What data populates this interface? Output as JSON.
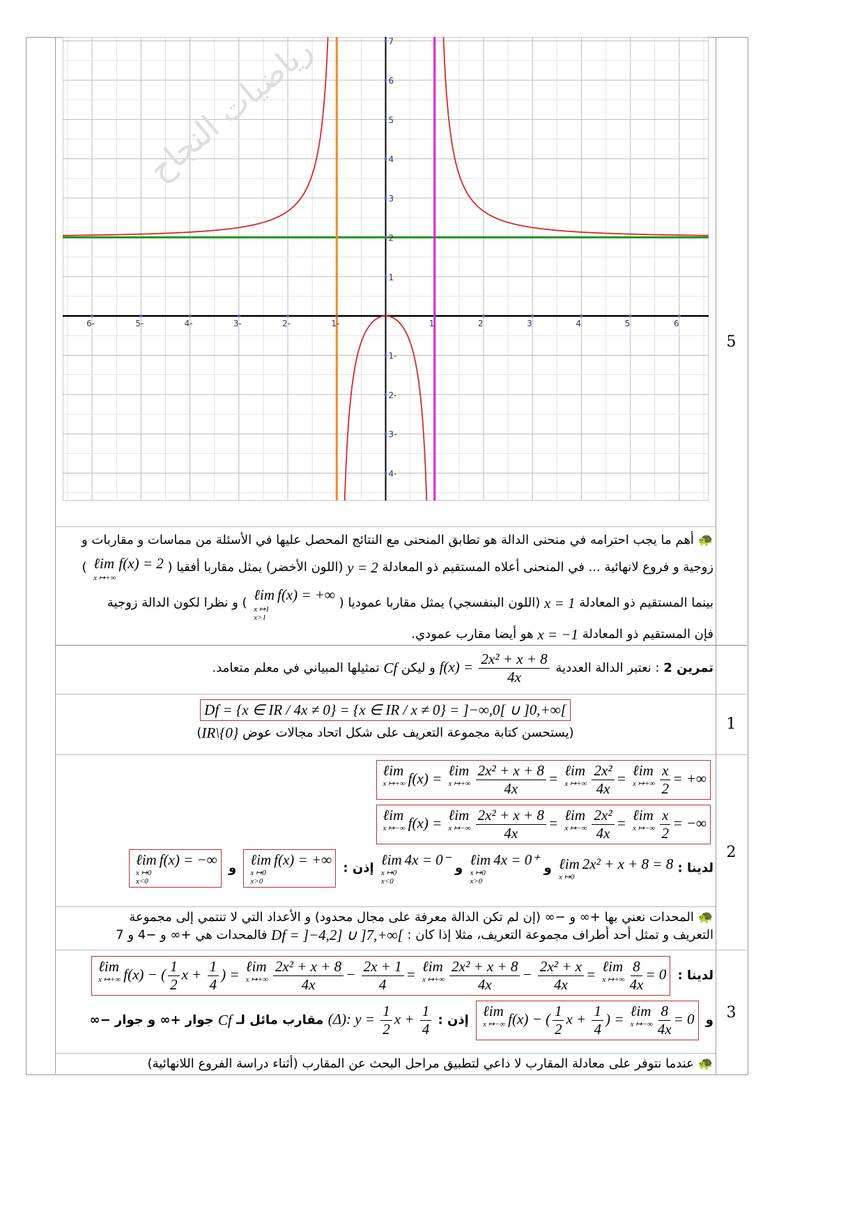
{
  "row_numbers": {
    "r5": "5",
    "r1": "1",
    "r2": "2",
    "r3": "3"
  },
  "graph": {
    "function": "f(x)=2x²/(x²−1)",
    "x_range": [
      -6.6,
      6.6
    ],
    "y_range": [
      -4.7,
      7.1
    ],
    "grid": true,
    "x_tick_labels": [
      {
        "v": -6,
        "t": "6-"
      },
      {
        "v": -5,
        "t": "5-"
      },
      {
        "v": -4,
        "t": "4-"
      },
      {
        "v": -3,
        "t": "3-"
      },
      {
        "v": -2,
        "t": "2-"
      },
      {
        "v": -1,
        "t": "1-"
      },
      {
        "v": 1,
        "t": "1"
      },
      {
        "v": 2,
        "t": "2"
      },
      {
        "v": 3,
        "t": "3"
      },
      {
        "v": 4,
        "t": "4"
      },
      {
        "v": 5,
        "t": "5"
      },
      {
        "v": 6,
        "t": "6"
      }
    ],
    "y_tick_labels": [
      {
        "v": 7,
        "t": "7"
      },
      {
        "v": 6,
        "t": "6"
      },
      {
        "v": 5,
        "t": "5"
      },
      {
        "v": 4,
        "t": "4"
      },
      {
        "v": 3,
        "t": "3"
      },
      {
        "v": 2,
        "t": "2"
      },
      {
        "v": 1,
        "t": "1"
      },
      {
        "v": -1,
        "t": "1-"
      },
      {
        "v": -2,
        "t": "2-"
      },
      {
        "v": -3,
        "t": "3-"
      },
      {
        "v": -4,
        "t": "4-"
      }
    ],
    "asymptotes": [
      {
        "type": "horizontal",
        "value": 2,
        "color": "#1a9a1a"
      },
      {
        "type": "vertical",
        "value": -1,
        "color": "#f08a24"
      },
      {
        "type": "vertical",
        "value": 1,
        "color": "#e020d8"
      }
    ],
    "curve_color": "#d42a2a",
    "watermark": "رياضيات النجاح"
  },
  "content": {
    "note5": [
      [
        {
          "icon": "turtle"
        },
        {
          "t": " أهم ما يجب احترامه في منحنى الدالة هو تطابق المنحنى مع النتائج المحصل عليها في الأسئلة من مماسات و مقاربات و"
        }
      ],
      [
        {
          "t": "زوجية و فروع لانهائية ... في المنحنى أعلاه المستقيم ذو المعادلة "
        },
        {
          "m": [
            "y = 2"
          ]
        },
        {
          "t": " (اللون الأخضر) يمثل مقاربا أفقيا ( "
        },
        {
          "m": [
            {
              "lim": [
                "x ↦+∞"
              ]
            },
            "f(x) = 2"
          ]
        },
        {
          "t": " )"
        }
      ],
      [
        {
          "t": "بينما المستقيم ذو المعادلة "
        },
        {
          "m": [
            "x = 1"
          ]
        },
        {
          "t": " (اللون البنفسجي) يمثل مقاربا عموديا ( "
        },
        {
          "m": [
            {
              "lim": [
                "x ↦1",
                "x>1"
              ]
            },
            "f(x) = +∞"
          ]
        },
        {
          "t": " ) و نظرا لكون الدالة زوجية"
        }
      ],
      [
        {
          "t": "فإن المستقيم ذو المعادلة "
        },
        {
          "m": [
            "x = −1"
          ]
        },
        {
          "t": " هو أيضا مقارب عمودي."
        }
      ]
    ],
    "exercise": [
      [
        {
          "b": "تمرين 2"
        },
        {
          "t": " :  نعتبر الدالة العددية  "
        },
        {
          "m": [
            "f(x) = ",
            {
              "frac": [
                "2x² + x + 8",
                "4x"
              ]
            }
          ]
        },
        {
          "t": "  و ليكن "
        },
        {
          "m": [
            "Cf"
          ]
        },
        {
          "t": " تمثيلها المبياني في معلم متعامد."
        }
      ]
    ],
    "r1": [
      [
        {
          "box": [
            "Df = {x ∈ IR / 4x ≠ 0} = {x ∈ IR / x ≠ 0} = ]−∞,0[ ∪ ]0,+∞["
          ]
        }
      ],
      [
        {
          "t": "(يستحسن كتابة مجموعة التعريف على شكل اتحاد مجالات عوض "
        },
        {
          "m": [
            "IR\\{0}"
          ]
        },
        {
          "t": ")"
        }
      ]
    ],
    "r2": [
      [
        {
          "box": [
            {
              "lim": [
                "x ↦+∞"
              ]
            },
            "f(x) = ",
            {
              "lim": [
                "x ↦+∞"
              ]
            },
            {
              "frac": [
                "2x² + x + 8",
                "4x"
              ]
            },
            "= ",
            {
              "lim": [
                "x ↦+∞"
              ]
            },
            {
              "frac": [
                "2x²",
                "4x"
              ]
            },
            "= ",
            {
              "lim": [
                "x ↦+∞"
              ]
            },
            {
              "frac": [
                "x",
                "2"
              ]
            },
            "= +∞"
          ]
        }
      ],
      [
        {
          "box": [
            {
              "lim": [
                "x ↦−∞"
              ]
            },
            "f(x) = ",
            {
              "lim": [
                "x ↦−∞"
              ]
            },
            {
              "frac": [
                "2x² + x + 8",
                "4x"
              ]
            },
            "= ",
            {
              "lim": [
                "x ↦−∞"
              ]
            },
            {
              "frac": [
                "2x²",
                "4x"
              ]
            },
            "= ",
            {
              "lim": [
                "x ↦−∞"
              ]
            },
            {
              "frac": [
                "x",
                "2"
              ]
            },
            "= −∞"
          ]
        }
      ],
      [
        {
          "b": "لدينا : "
        },
        {
          "m": [
            {
              "lim": [
                "x ↦0"
              ]
            },
            "2x² + x + 8 = 8"
          ]
        },
        {
          "b": " و "
        },
        {
          "m": [
            {
              "lim": [
                "x ↦0",
                "x>0"
              ]
            },
            "4x = 0⁺"
          ]
        },
        {
          "b": " و "
        },
        {
          "m": [
            {
              "lim": [
                "x ↦0",
                "x<0"
              ]
            },
            "4x = 0⁻"
          ]
        },
        {
          "b": " إذن : "
        },
        {
          "box": [
            {
              "lim": [
                "x ↦0",
                "x>0"
              ]
            },
            "f(x) = +∞"
          ]
        },
        {
          "b": " و "
        },
        {
          "box": [
            {
              "lim": [
                "x ↦0",
                "x<0"
              ]
            },
            "f(x) = −∞"
          ]
        }
      ]
    ],
    "note2": [
      [
        {
          "icon": "turtle"
        },
        {
          "t": " المحدات نعني بها +∞ و −∞ (إن لم تكن الدالة معرفة على مجال محدود) و الأعداد التي لا تنتمي إلى مجموعة"
        }
      ],
      [
        {
          "t": "التعريف و تمثل أحد أطراف مجموعة التعريف، مثلا إذا كان : "
        },
        {
          "m": [
            "Df = ]−4,2] ∪ ]7,+∞["
          ]
        },
        {
          "t": " فالمحدات هي +∞ و −4 و 7"
        }
      ]
    ],
    "r3": [
      [
        {
          "b": "لدينا : "
        },
        {
          "box": [
            {
              "lim": [
                "x ↦+∞"
              ]
            },
            "f(x) − (",
            {
              "frac": [
                "1",
                "2"
              ]
            },
            "x + ",
            {
              "frac": [
                "1",
                "4"
              ]
            },
            ") = ",
            {
              "lim": [
                "x ↦+∞"
              ]
            },
            {
              "frac": [
                "2x² + x + 8",
                "4x"
              ]
            },
            "− ",
            {
              "frac": [
                "2x + 1",
                "4"
              ]
            },
            "= ",
            {
              "lim": [
                "x ↦+∞"
              ]
            },
            {
              "frac": [
                "2x² + x + 8",
                "4x"
              ]
            },
            "− ",
            {
              "frac": [
                "2x² + x",
                "4x"
              ]
            },
            "= ",
            {
              "lim": [
                "x ↦+∞"
              ]
            },
            {
              "frac": [
                "8",
                "4x"
              ]
            },
            "= 0"
          ]
        }
      ],
      [
        {
          "b": "و "
        },
        {
          "box": [
            {
              "lim": [
                "x ↦−∞"
              ]
            },
            "f(x) − (",
            {
              "frac": [
                "1",
                "2"
              ]
            },
            "x + ",
            {
              "frac": [
                "1",
                "4"
              ]
            },
            ") = ",
            {
              "lim": [
                "x ↦−∞"
              ]
            },
            {
              "frac": [
                "8",
                "4x"
              ]
            },
            "= 0"
          ]
        },
        {
          "b": " إذن : "
        },
        {
          "m": [
            "(Δ): y = ",
            {
              "frac": [
                "1",
                "2"
              ]
            },
            "x + ",
            {
              "frac": [
                "1",
                "4"
              ]
            }
          ]
        },
        {
          "b": " مقارب مائل لـ "
        },
        {
          "m": [
            "Cf"
          ]
        },
        {
          "b": " جوار +∞ و جوار −∞"
        }
      ]
    ],
    "note3": [
      [
        {
          "icon": "turtle"
        },
        {
          "t": " عندما نتوفر على معادلة المقارب لا داعي لتطبيق مراحل البحث عن المقارب (أثناء دراسة الفروع اللانهائية)"
        }
      ]
    ]
  }
}
